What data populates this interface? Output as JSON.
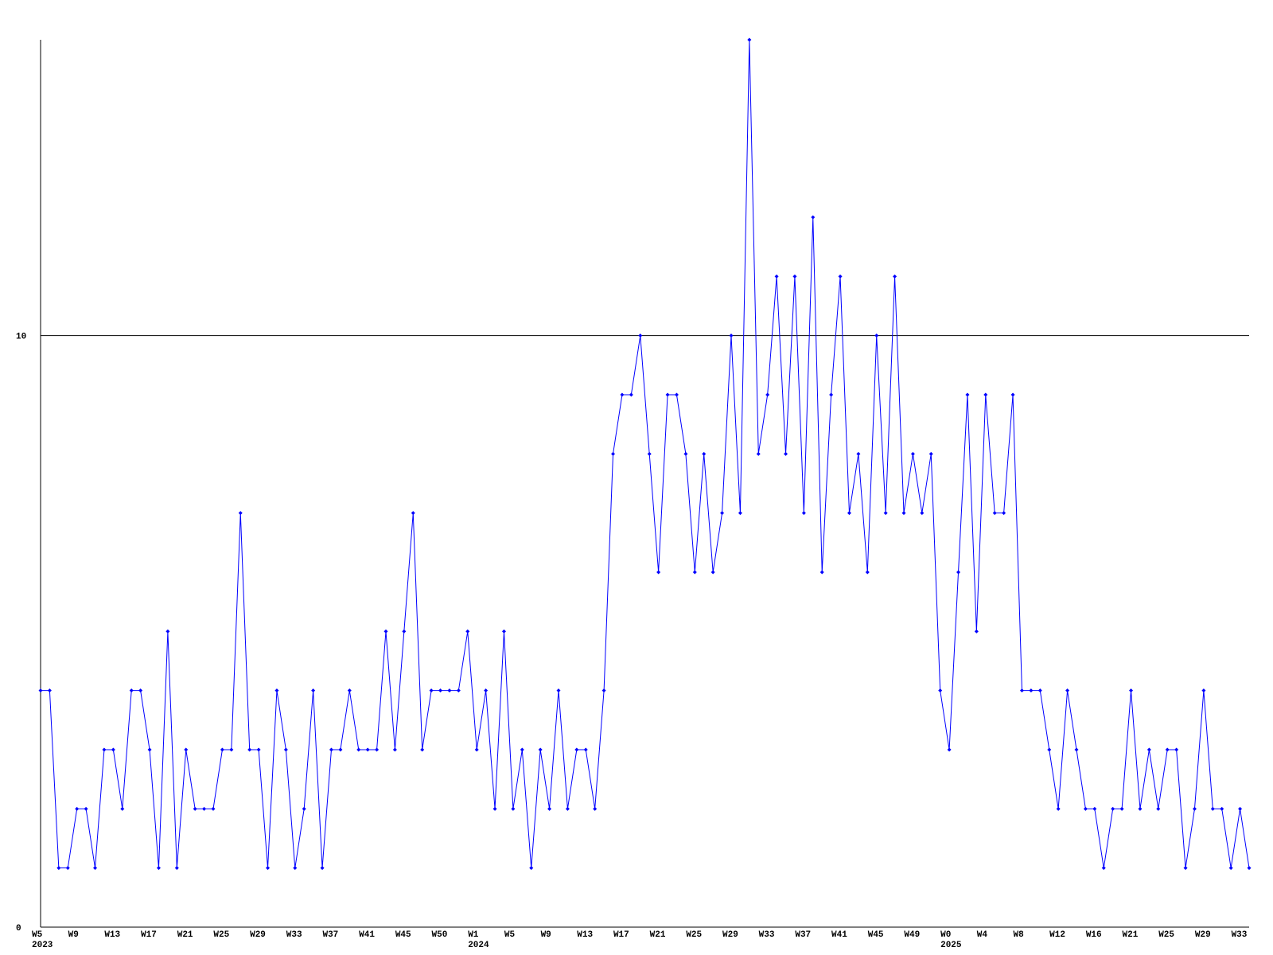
{
  "chart_data": {
    "type": "line",
    "categories": [
      "W5",
      null,
      null,
      null,
      "W9",
      null,
      null,
      null,
      "W13",
      null,
      null,
      null,
      "W17",
      null,
      null,
      null,
      "W21",
      null,
      null,
      null,
      "W25",
      null,
      null,
      null,
      "W29",
      null,
      null,
      null,
      "W33",
      null,
      null,
      null,
      "W37",
      null,
      null,
      null,
      "W41",
      null,
      null,
      null,
      "W45",
      null,
      null,
      null,
      "W50",
      null,
      null,
      null,
      "W1",
      null,
      null,
      null,
      "W5",
      null,
      null,
      null,
      "W9",
      null,
      null,
      null,
      "W13",
      null,
      null,
      null,
      "W17",
      null,
      null,
      null,
      "W21",
      null,
      null,
      null,
      "W25",
      null,
      null,
      null,
      "W29",
      null,
      null,
      null,
      "W33",
      null,
      null,
      null,
      "W37",
      null,
      null,
      null,
      "W41",
      null,
      null,
      null,
      "W45",
      null,
      null,
      null,
      "W49",
      null,
      null,
      null,
      "W0",
      null,
      null,
      null,
      "W4",
      null,
      null,
      null,
      "W8",
      null,
      null,
      null,
      "W12",
      null,
      null,
      null,
      "W16",
      null,
      null,
      null,
      "W21",
      null,
      null,
      null,
      "W25",
      null,
      null,
      null,
      "W29",
      null,
      null,
      null,
      "W33",
      null
    ],
    "years": [
      "2023",
      null,
      null,
      null,
      null,
      null,
      null,
      null,
      null,
      null,
      null,
      null,
      null,
      null,
      null,
      null,
      null,
      null,
      null,
      null,
      null,
      null,
      null,
      null,
      null,
      null,
      null,
      null,
      null,
      null,
      null,
      null,
      null,
      null,
      null,
      null,
      null,
      null,
      null,
      null,
      null,
      null,
      null,
      null,
      null,
      null,
      null,
      null,
      "2024",
      null,
      null,
      null,
      null,
      null,
      null,
      null,
      null,
      null,
      null,
      null,
      null,
      null,
      null,
      null,
      null,
      null,
      null,
      null,
      null,
      null,
      null,
      null,
      null,
      null,
      null,
      null,
      null,
      null,
      null,
      null,
      null,
      null,
      null,
      null,
      null,
      null,
      null,
      null,
      null,
      null,
      null,
      null,
      null,
      null,
      null,
      null,
      null,
      null,
      null,
      null,
      "2025",
      null,
      null,
      null,
      null,
      null,
      null,
      null,
      null,
      null,
      null,
      null,
      null,
      null,
      null,
      null,
      null,
      null,
      null,
      null,
      null,
      null,
      null,
      null,
      null,
      null,
      null,
      null,
      null,
      null,
      null,
      null,
      null,
      null
    ],
    "series": [
      {
        "color": "#0000ff",
        "values": [
          4,
          4,
          1,
          1,
          2,
          2,
          1,
          3,
          3,
          2,
          4,
          4,
          3,
          1,
          5,
          1,
          3,
          2,
          2,
          2,
          3,
          3,
          7,
          3,
          3,
          1,
          4,
          3,
          1,
          2,
          4,
          1,
          3,
          3,
          4,
          3,
          3,
          3,
          5,
          3,
          5,
          7,
          3,
          4,
          4,
          4,
          4,
          5,
          3,
          4,
          2,
          5,
          2,
          3,
          1,
          3,
          2,
          4,
          2,
          3,
          3,
          2,
          4,
          8,
          9,
          9,
          10,
          8,
          6,
          9,
          9,
          8,
          6,
          8,
          6,
          7,
          10,
          7,
          15,
          8,
          9,
          11,
          8,
          11,
          7,
          12,
          6,
          9,
          11,
          7,
          8,
          6,
          10,
          7,
          11,
          7,
          8,
          7,
          8,
          4,
          3,
          6,
          9,
          5,
          9,
          7,
          7,
          9,
          4,
          4,
          4,
          3,
          2,
          4,
          3,
          2,
          2,
          1,
          2,
          2,
          4,
          2,
          3,
          2,
          3,
          3,
          1,
          2,
          4,
          2,
          2,
          1,
          2,
          1
        ]
      }
    ],
    "ylim": [
      0,
      15
    ],
    "yticks": [
      0,
      10
    ],
    "grid": true
  }
}
